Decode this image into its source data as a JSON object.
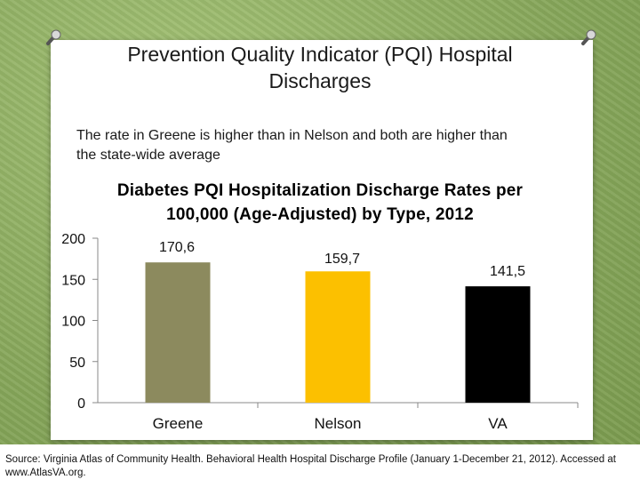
{
  "slide": {
    "title": "Prevention Quality Indicator (PQI) Hospital Discharges",
    "subtitle": "The rate in Greene is higher than in Nelson and both are higher than the state-wide average",
    "source": "Source: Virginia Atlas of Community Health. Behavioral Health Hospital Discharge Profile (January 1-December 21, 2012). Accessed at www.AtlasVA.org."
  },
  "colors": {
    "greene": "#8c8a5e",
    "nelson": "#fcc000",
    "va": "#000000",
    "axis": "#888888"
  },
  "chart_data": {
    "type": "bar",
    "title": "Diabetes PQI Hospitalization Discharge Rates per 100,000 (Age-Adjusted) by Type, 2012",
    "categories": [
      "Greene",
      "Nelson",
      "VA"
    ],
    "values": [
      170.6,
      159.7,
      141.5
    ],
    "value_labels": [
      "170,6",
      "159,7",
      "141,5"
    ],
    "ylim": [
      0,
      200
    ],
    "yticks": [
      0,
      50,
      100,
      150,
      200
    ],
    "xlabel": "",
    "ylabel": "",
    "grid": false,
    "legend": "none"
  }
}
